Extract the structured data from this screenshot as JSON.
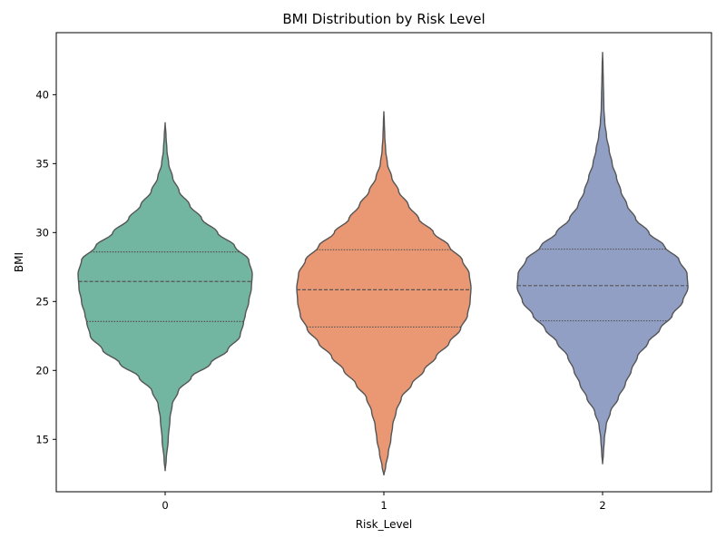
{
  "chart_data": {
    "type": "violin",
    "title": "BMI Distribution by Risk Level",
    "xlabel": "Risk_Level",
    "ylabel": "BMI",
    "categories": [
      "0",
      "1",
      "2"
    ],
    "ylim": [
      11.2,
      44.5
    ],
    "yticks": [
      15,
      20,
      25,
      30,
      35,
      40
    ],
    "grid": false,
    "legend": "none",
    "inner": "quartile",
    "line_color": "#555555",
    "violins": [
      {
        "category": "0",
        "color": "#72b5a0",
        "quartiles": [
          23.55,
          26.45,
          28.6
        ],
        "profile": [
          [
            12.7,
            0.0
          ],
          [
            13.5,
            0.012
          ],
          [
            15.0,
            0.035
          ],
          [
            16.5,
            0.055
          ],
          [
            17.5,
            0.08
          ],
          [
            18.5,
            0.15
          ],
          [
            19.5,
            0.3
          ],
          [
            20.5,
            0.52
          ],
          [
            21.5,
            0.72
          ],
          [
            22.5,
            0.86
          ],
          [
            23.5,
            0.9
          ],
          [
            24.0,
            0.92
          ],
          [
            25.0,
            0.96
          ],
          [
            26.0,
            0.99
          ],
          [
            27.0,
            1.0
          ],
          [
            28.0,
            0.96
          ],
          [
            29.0,
            0.8
          ],
          [
            30.0,
            0.6
          ],
          [
            31.0,
            0.42
          ],
          [
            32.0,
            0.28
          ],
          [
            33.0,
            0.16
          ],
          [
            34.0,
            0.085
          ],
          [
            35.0,
            0.04
          ],
          [
            36.0,
            0.02
          ],
          [
            37.0,
            0.01
          ],
          [
            38.0,
            0.0
          ]
        ]
      },
      {
        "category": "1",
        "color": "#e99873",
        "quartiles": [
          23.15,
          25.85,
          28.75
        ],
        "profile": [
          [
            12.4,
            0.0
          ],
          [
            13.0,
            0.02
          ],
          [
            14.0,
            0.05
          ],
          [
            15.0,
            0.08
          ],
          [
            16.0,
            0.1
          ],
          [
            17.0,
            0.14
          ],
          [
            18.0,
            0.2
          ],
          [
            19.0,
            0.32
          ],
          [
            20.0,
            0.46
          ],
          [
            21.0,
            0.6
          ],
          [
            22.0,
            0.75
          ],
          [
            23.0,
            0.88
          ],
          [
            24.0,
            0.96
          ],
          [
            25.0,
            0.99
          ],
          [
            26.0,
            1.0
          ],
          [
            27.0,
            0.98
          ],
          [
            28.0,
            0.9
          ],
          [
            29.0,
            0.75
          ],
          [
            30.0,
            0.57
          ],
          [
            31.0,
            0.4
          ],
          [
            32.0,
            0.28
          ],
          [
            33.0,
            0.17
          ],
          [
            34.0,
            0.09
          ],
          [
            35.0,
            0.04
          ],
          [
            36.0,
            0.02
          ],
          [
            37.0,
            0.01
          ],
          [
            38.0,
            0.005
          ],
          [
            38.8,
            0.0
          ]
        ]
      },
      {
        "category": "2",
        "color": "#929fc5",
        "quartiles": [
          23.6,
          26.15,
          28.8
        ],
        "profile": [
          [
            13.2,
            0.0
          ],
          [
            14.0,
            0.01
          ],
          [
            15.0,
            0.02
          ],
          [
            16.0,
            0.04
          ],
          [
            17.0,
            0.09
          ],
          [
            18.0,
            0.18
          ],
          [
            19.0,
            0.26
          ],
          [
            20.0,
            0.33
          ],
          [
            21.0,
            0.4
          ],
          [
            22.0,
            0.52
          ],
          [
            23.0,
            0.66
          ],
          [
            24.0,
            0.8
          ],
          [
            25.0,
            0.92
          ],
          [
            26.0,
            0.98
          ],
          [
            27.0,
            0.97
          ],
          [
            28.0,
            0.88
          ],
          [
            29.0,
            0.71
          ],
          [
            30.0,
            0.53
          ],
          [
            31.0,
            0.38
          ],
          [
            32.0,
            0.28
          ],
          [
            33.0,
            0.21
          ],
          [
            34.0,
            0.16
          ],
          [
            35.0,
            0.11
          ],
          [
            36.0,
            0.075
          ],
          [
            37.0,
            0.045
          ],
          [
            38.0,
            0.025
          ],
          [
            39.0,
            0.015
          ],
          [
            40.0,
            0.012
          ],
          [
            41.0,
            0.008
          ],
          [
            42.0,
            0.005
          ],
          [
            43.1,
            0.0
          ]
        ]
      }
    ]
  }
}
